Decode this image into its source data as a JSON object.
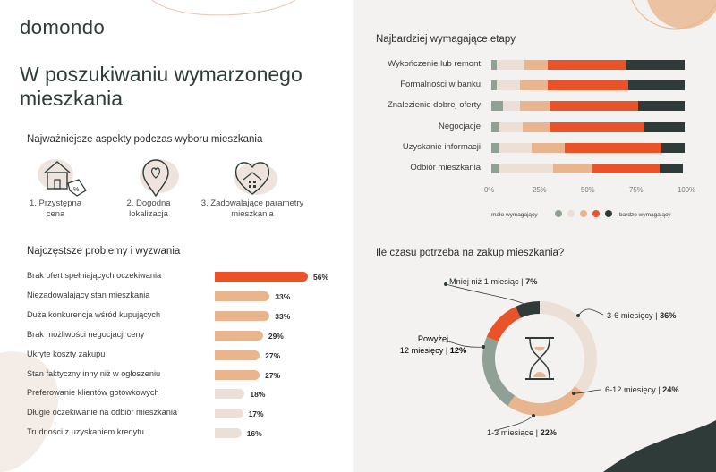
{
  "brand": {
    "logo": "domondo"
  },
  "hero": {
    "title": "W poszukiwaniu wymarzonego mieszkania"
  },
  "aspects": {
    "title": "Najważniejsze aspekty podczas wyboru mieszkania",
    "items": [
      {
        "label": "1. Przystępna cena",
        "icon": "house-price-tag-icon"
      },
      {
        "label": "2. Dogodna lokalizacja",
        "icon": "location-pin-heart-icon"
      },
      {
        "label": "3. Zadowalające parametry mieszkania",
        "icon": "heart-house-icon"
      }
    ]
  },
  "colors": {
    "c1": "#8fa094",
    "c2": "#ecdfd6",
    "c3": "#e8b58e",
    "c4": "#e8532a",
    "c5": "#2e3b39",
    "problems_accent": "#e8532a",
    "problems_medium": "#e8b58e",
    "problems_light": "#ecdfd6"
  },
  "chart_data": [
    {
      "type": "bar",
      "orientation": "horizontal",
      "title": "Najczęstsze problemy i wyzwania",
      "categories": [
        "Brak ofert spełniających oczekiwania",
        "Niezadowalający stan mieszkania",
        "Duża konkurencja wśród kupujących",
        "Brak możliwości negocjacji ceny",
        "Ukryte koszty zakupu",
        "Stan faktyczny inny niż w ogłoszeniu",
        "Preferowanie klientów gotówkowych",
        "Długie oczekiwanie na odbiór mieszkania",
        "Trudności z uzyskaniem kredytu"
      ],
      "values": [
        56,
        33,
        33,
        29,
        27,
        27,
        18,
        17,
        16
      ],
      "value_labels": [
        "56%",
        "33%",
        "33%",
        "29%",
        "27%",
        "27%",
        "18%",
        "17%",
        "16%"
      ]
    },
    {
      "type": "bar",
      "orientation": "horizontal",
      "stacked": true,
      "title": "Najbardziej wymagające etapy",
      "categories": [
        "Wykończenie lub remont",
        "Formalności w banku",
        "Znalezienie dobrej oferty",
        "Negocjacje",
        "Uzyskanie informacji",
        "Odbiór mieszkania"
      ],
      "series": [
        {
          "values": [
            3,
            3,
            6,
            4,
            4,
            4
          ]
        },
        {
          "values": [
            14,
            12,
            9,
            12,
            17,
            28
          ]
        },
        {
          "values": [
            12,
            14,
            15,
            14,
            17,
            20
          ]
        },
        {
          "values": [
            41,
            42,
            46,
            49,
            50,
            35
          ]
        },
        {
          "values": [
            30,
            29,
            24,
            21,
            12,
            12
          ]
        }
      ],
      "xticks": [
        "0%",
        "25%",
        "50%",
        "75%",
        "100%"
      ],
      "xlim": [
        0,
        100
      ],
      "legend": {
        "left_label": "mało wymagający",
        "right_label": "bardzo wymagający",
        "position": "bottom"
      }
    },
    {
      "type": "pie",
      "donut": true,
      "title": "Ile czasu potrzeba na zakup mieszkania?",
      "categories": [
        "3-6 miesięcy",
        "6-12 miesięcy",
        "1-3 miesiące",
        "Powyżej 12 miesięcy",
        "Mniej niż 1 miesiąc"
      ],
      "values": [
        36,
        24,
        22,
        12,
        7
      ],
      "labels": [
        "3-6 miesięcy | 36%",
        "6-12 miesięcy | 24%",
        "1-3 miesiące | 22%",
        "Powyżej 12 miesięcy | 12%",
        "Mniej niż 1 miesiąc | 7%"
      ],
      "colors": [
        "#ecdfd6",
        "#e8b58e",
        "#8fa094",
        "#e8532a",
        "#2e3b39"
      ]
    }
  ]
}
